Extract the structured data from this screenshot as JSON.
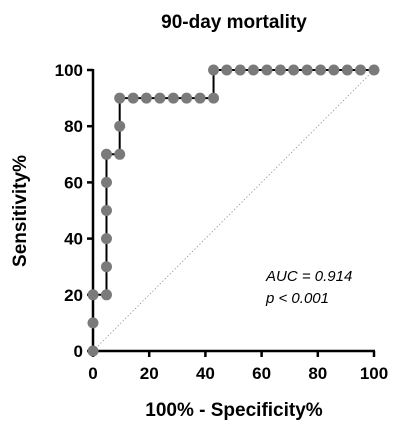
{
  "chart_data": {
    "type": "line",
    "title": "90-day mortality",
    "xlabel": "100% - Specificity%",
    "ylabel": "Sensitivity%",
    "xlim": [
      0,
      100
    ],
    "ylim": [
      0,
      100
    ],
    "x_ticks": [
      "0",
      "20",
      "40",
      "60",
      "80",
      "100"
    ],
    "y_ticks": [
      "0",
      "20",
      "40",
      "60",
      "80",
      "100"
    ],
    "grid": false,
    "colors": {
      "curve": "#000000",
      "points": "#7a7a7a",
      "reference": "#9a9a9a"
    },
    "series": [
      {
        "points": [
          [
            0,
            0
          ],
          [
            0,
            10
          ],
          [
            0,
            20
          ],
          [
            4.8,
            20
          ],
          [
            4.8,
            30
          ],
          [
            4.8,
            40
          ],
          [
            4.8,
            50
          ],
          [
            4.8,
            60
          ],
          [
            4.8,
            70
          ],
          [
            9.5,
            70
          ],
          [
            9.5,
            80
          ],
          [
            9.5,
            90
          ],
          [
            14.3,
            90
          ],
          [
            19,
            90
          ],
          [
            23.8,
            90
          ],
          [
            28.6,
            90
          ],
          [
            33.3,
            90
          ],
          [
            38.1,
            90
          ],
          [
            42.9,
            90
          ],
          [
            42.9,
            100
          ],
          [
            47.6,
            100
          ],
          [
            52.4,
            100
          ],
          [
            57.1,
            100
          ],
          [
            61.9,
            100
          ],
          [
            66.7,
            100
          ],
          [
            71.4,
            100
          ],
          [
            76.2,
            100
          ],
          [
            81,
            100
          ],
          [
            85.7,
            100
          ],
          [
            90.5,
            100
          ],
          [
            95.2,
            100
          ],
          [
            100,
            100
          ]
        ]
      }
    ],
    "reference_line": [
      [
        0,
        0
      ],
      [
        100,
        100
      ]
    ],
    "annotations": [
      "AUC = 0.914",
      "p < 0.001"
    ]
  }
}
